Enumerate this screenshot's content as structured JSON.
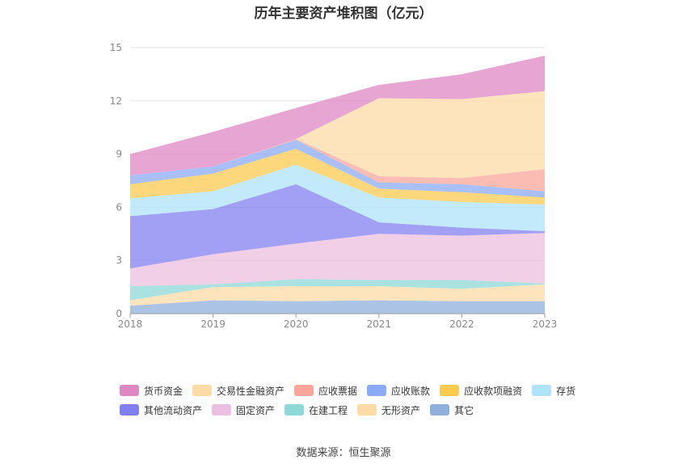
{
  "chart_data": {
    "type": "area",
    "stacked": true,
    "title": "历年主要资产堆积图（亿元）",
    "x": [
      "2018",
      "2019",
      "2020",
      "2021",
      "2022",
      "2023"
    ],
    "ylim": [
      0,
      15
    ],
    "yticks": [
      0,
      3,
      6,
      9,
      12,
      15
    ],
    "grid": true,
    "legend_position": "bottom",
    "series": [
      {
        "name": "其它",
        "color": "#8fb0dc",
        "values": [
          0.45,
          0.75,
          0.7,
          0.75,
          0.7,
          0.7
        ]
      },
      {
        "name": "无形资产",
        "color": "#fddba7",
        "values": [
          0.3,
          0.75,
          0.85,
          0.8,
          0.7,
          0.95
        ]
      },
      {
        "name": "在建工程",
        "color": "#8ed8d8",
        "values": [
          0.8,
          0.15,
          0.4,
          0.35,
          0.5,
          0.05
        ]
      },
      {
        "name": "固定资产",
        "color": "#ebbfdf",
        "values": [
          1.0,
          1.7,
          2.0,
          2.6,
          2.5,
          2.85
        ]
      },
      {
        "name": "其他流动资产",
        "color": "#8280f0",
        "values": [
          2.95,
          2.55,
          3.35,
          0.65,
          0.45,
          0.1
        ]
      },
      {
        "name": "存货",
        "color": "#aee3fa",
        "values": [
          1.0,
          1.0,
          1.1,
          1.4,
          1.45,
          1.5
        ]
      },
      {
        "name": "应收款项融资",
        "color": "#fcca4f",
        "values": [
          0.8,
          1.0,
          0.9,
          0.5,
          0.55,
          0.4
        ]
      },
      {
        "name": "应收账款",
        "color": "#8caaf5",
        "values": [
          0.5,
          0.4,
          0.5,
          0.35,
          0.45,
          0.35
        ]
      },
      {
        "name": "应收票据",
        "color": "#f9a59a",
        "values": [
          0.0,
          0.0,
          0.05,
          0.35,
          0.35,
          1.25
        ]
      },
      {
        "name": "交易性金融资产",
        "color": "#fddba7",
        "values": [
          0.0,
          0.0,
          0.0,
          4.4,
          4.45,
          4.4
        ]
      },
      {
        "name": "货币资金",
        "color": "#de87c3",
        "values": [
          1.2,
          1.95,
          1.75,
          0.75,
          1.4,
          2.0
        ]
      }
    ]
  },
  "legend": {
    "row1": [
      {
        "name": "货币资金",
        "color": "#de87c3"
      },
      {
        "name": "交易性金融资产",
        "color": "#fddba7"
      },
      {
        "name": "应收票据",
        "color": "#f9a59a"
      },
      {
        "name": "应收账款",
        "color": "#8caaf5"
      },
      {
        "name": "应收款项融资",
        "color": "#fcca4f"
      },
      {
        "name": "存货",
        "color": "#aee3fa"
      }
    ],
    "row2": [
      {
        "name": "其他流动资产",
        "color": "#8280f0"
      },
      {
        "name": "固定资产",
        "color": "#ebbfdf"
      },
      {
        "name": "在建工程",
        "color": "#8ed8d8"
      },
      {
        "name": "无形资产",
        "color": "#fddba7"
      },
      {
        "name": "其它",
        "color": "#8fb0dc"
      }
    ]
  },
  "source": "数据来源：恒生聚源"
}
